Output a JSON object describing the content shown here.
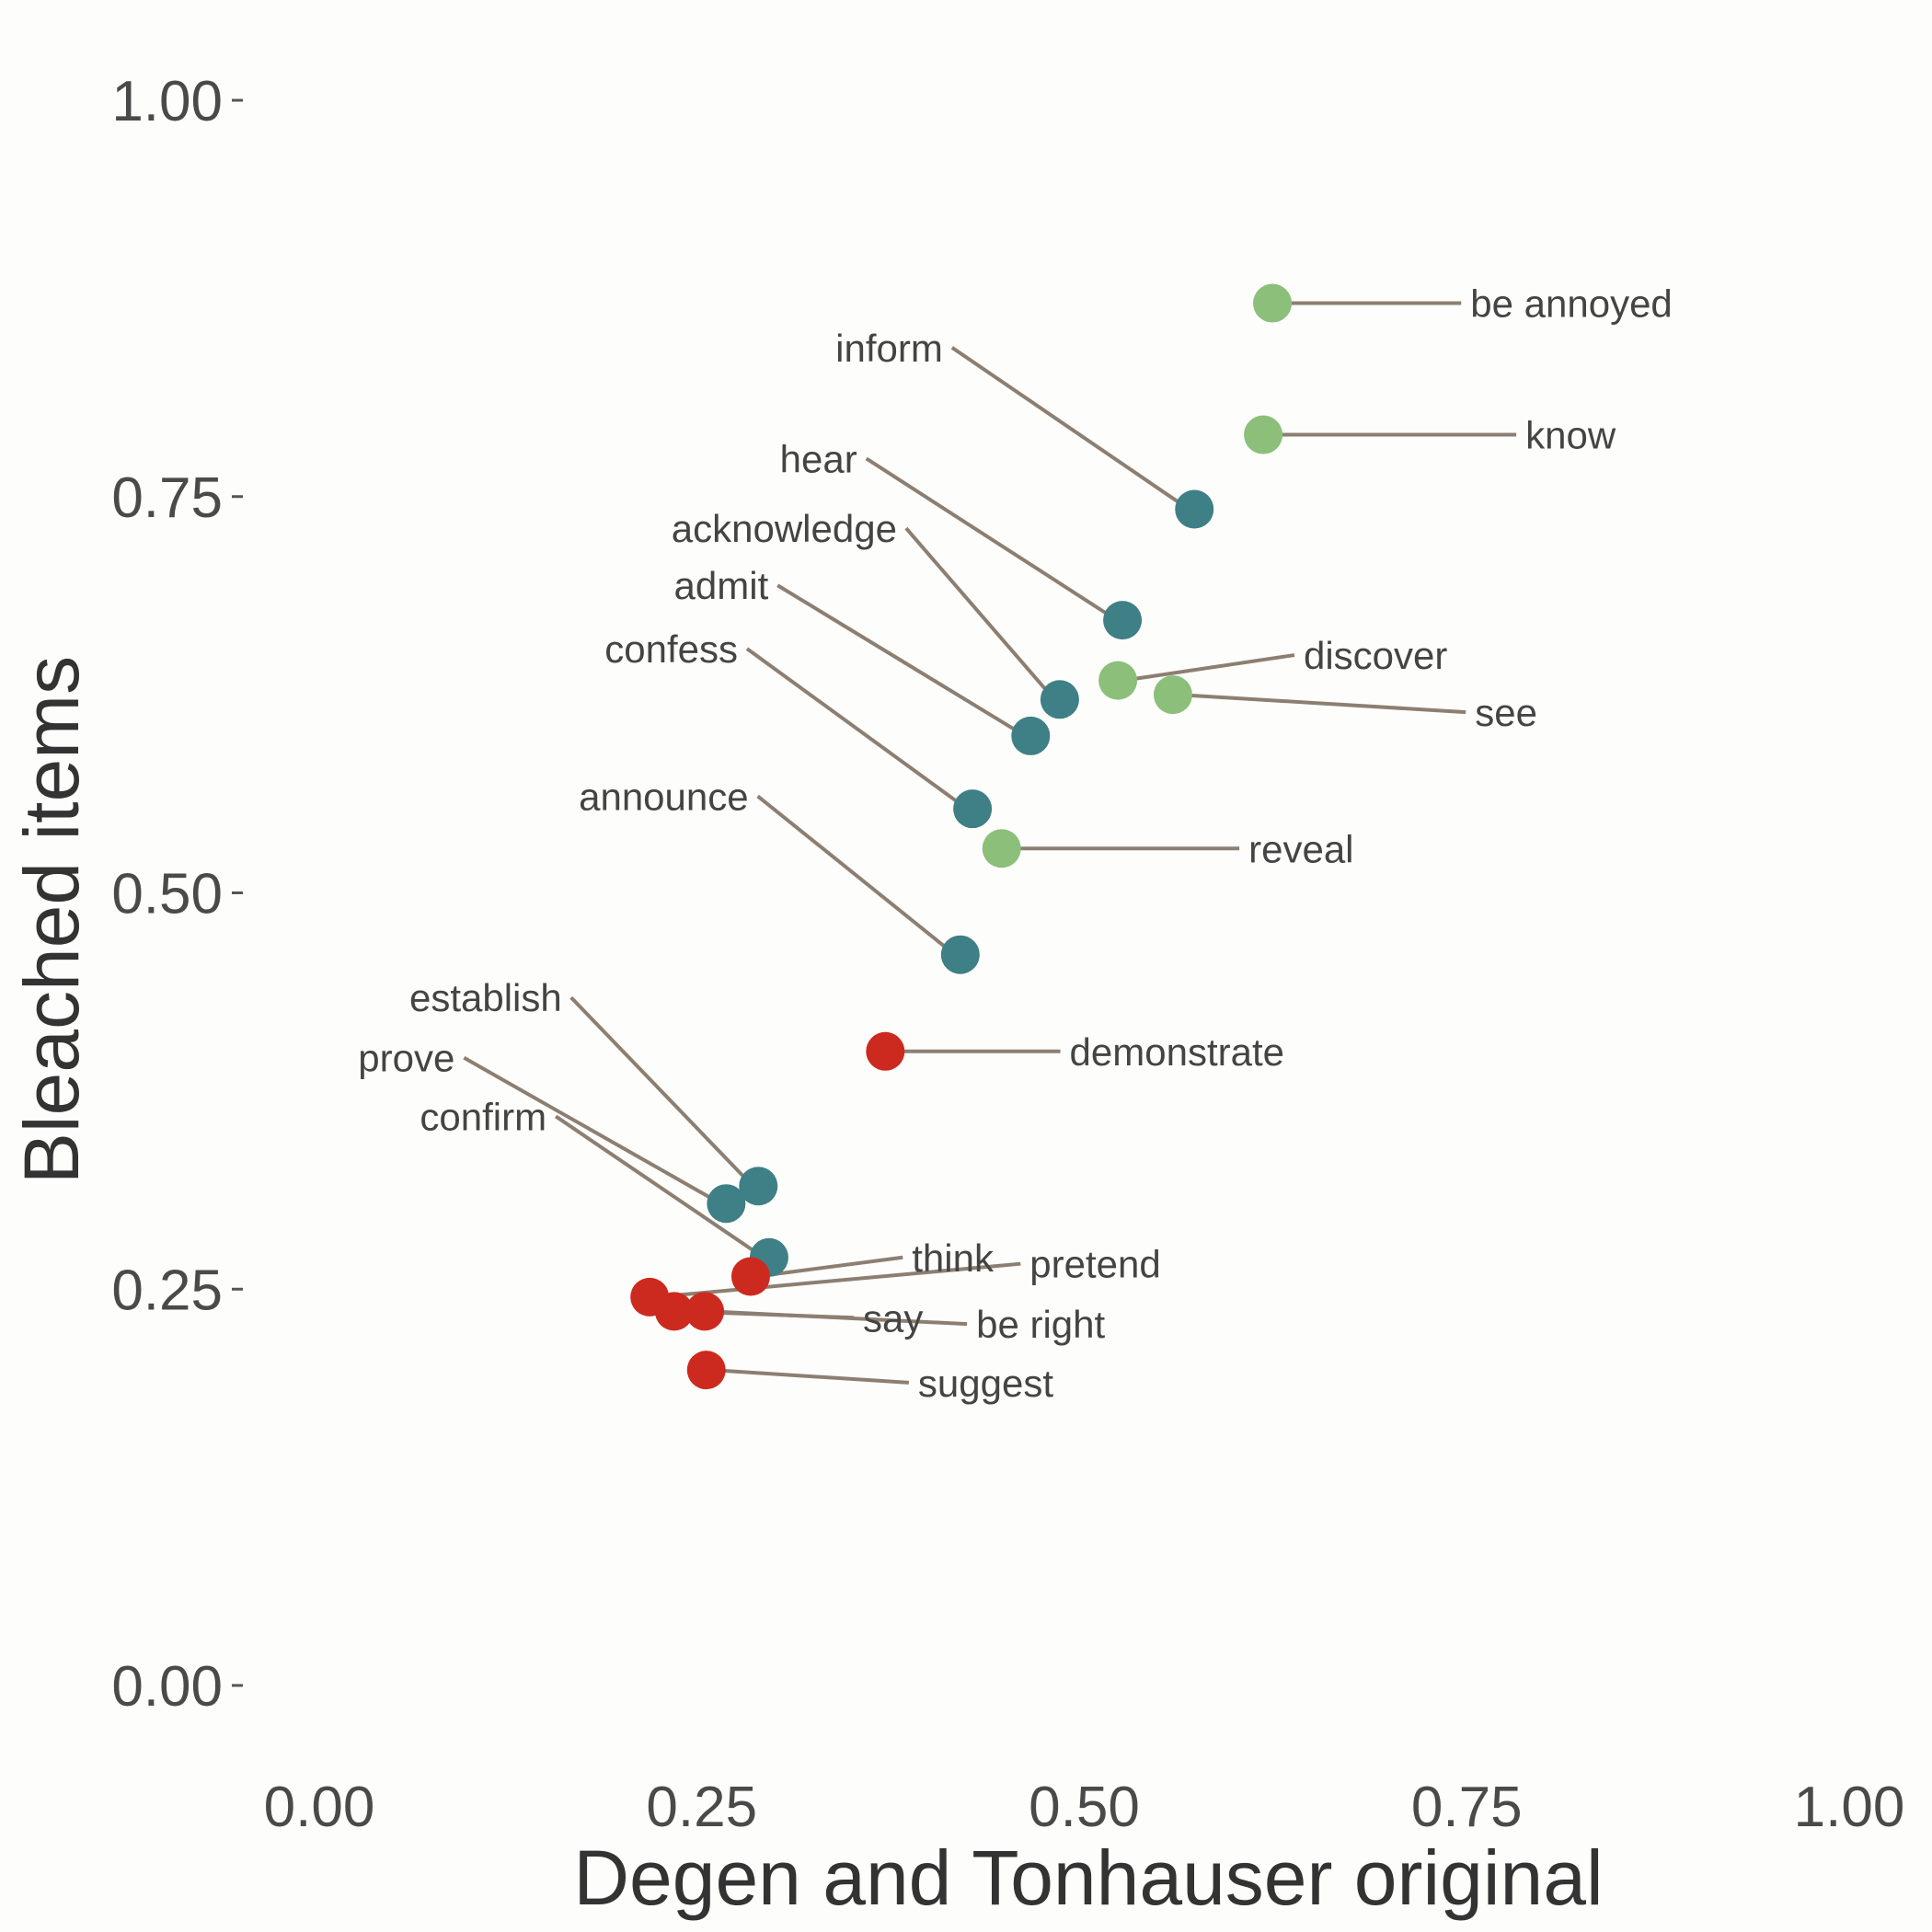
{
  "chart_data": {
    "type": "scatter",
    "xlabel": "Degen and Tonhauser original",
    "ylabel": "Bleached items",
    "xlim": [
      0,
      1
    ],
    "ylim": [
      0,
      1
    ],
    "xticks": [
      "0.00",
      "0.25",
      "0.50",
      "0.75",
      "1.00"
    ],
    "yticks": [
      "0.00",
      "0.25",
      "0.50",
      "0.75",
      "1.00"
    ],
    "grid": false,
    "legend": "none",
    "colors": {
      "red": "#cc2a1e",
      "teal": "#3f7f86",
      "green": "#8cbf7a",
      "leader": "#8c7f72"
    },
    "points": [
      {
        "label": "be annoyed",
        "x": 0.623,
        "y": 0.872,
        "color": "green",
        "lx": 0.75,
        "ly": 0.872
      },
      {
        "label": "know",
        "x": 0.617,
        "y": 0.789,
        "color": "green",
        "lx": 0.786,
        "ly": 0.789
      },
      {
        "label": "inform",
        "x": 0.572,
        "y": 0.742,
        "color": "teal",
        "lx": 0.41,
        "ly": 0.844
      },
      {
        "label": "hear",
        "x": 0.525,
        "y": 0.672,
        "color": "teal",
        "lx": 0.354,
        "ly": 0.774
      },
      {
        "label": "acknowledge",
        "x": 0.484,
        "y": 0.622,
        "color": "teal",
        "lx": 0.38,
        "ly": 0.73
      },
      {
        "label": "discover",
        "x": 0.522,
        "y": 0.634,
        "color": "green",
        "lx": 0.641,
        "ly": 0.65
      },
      {
        "label": "see",
        "x": 0.558,
        "y": 0.625,
        "color": "green",
        "lx": 0.753,
        "ly": 0.614
      },
      {
        "label": "admit",
        "x": 0.465,
        "y": 0.599,
        "color": "teal",
        "lx": 0.296,
        "ly": 0.694
      },
      {
        "label": "confess",
        "x": 0.427,
        "y": 0.553,
        "color": "teal",
        "lx": 0.276,
        "ly": 0.654
      },
      {
        "label": "reveal",
        "x": 0.446,
        "y": 0.528,
        "color": "green",
        "lx": 0.605,
        "ly": 0.528
      },
      {
        "label": "announce",
        "x": 0.419,
        "y": 0.461,
        "color": "teal",
        "lx": 0.283,
        "ly": 0.561
      },
      {
        "label": "demonstrate",
        "x": 0.37,
        "y": 0.4,
        "color": "red",
        "lx": 0.488,
        "ly": 0.4
      },
      {
        "label": "establish",
        "x": 0.287,
        "y": 0.315,
        "color": "teal",
        "lx": 0.161,
        "ly": 0.434
      },
      {
        "label": "prove",
        "x": 0.266,
        "y": 0.304,
        "color": "teal",
        "lx": 0.091,
        "ly": 0.396
      },
      {
        "label": "confirm",
        "x": 0.294,
        "y": 0.27,
        "color": "teal",
        "lx": 0.151,
        "ly": 0.359
      },
      {
        "label": "think",
        "x": 0.282,
        "y": 0.258,
        "color": "red",
        "lx": 0.385,
        "ly": 0.27
      },
      {
        "label": "pretend",
        "x": 0.216,
        "y": 0.245,
        "color": "red",
        "lx": 0.462,
        "ly": 0.266
      },
      {
        "label": "say",
        "x": 0.232,
        "y": 0.236,
        "color": "red",
        "lx": 0.353,
        "ly": 0.232
      },
      {
        "label": "be right",
        "x": 0.252,
        "y": 0.236,
        "color": "red",
        "lx": 0.427,
        "ly": 0.228
      },
      {
        "label": "suggest",
        "x": 0.253,
        "y": 0.199,
        "color": "red",
        "lx": 0.389,
        "ly": 0.191
      }
    ]
  }
}
